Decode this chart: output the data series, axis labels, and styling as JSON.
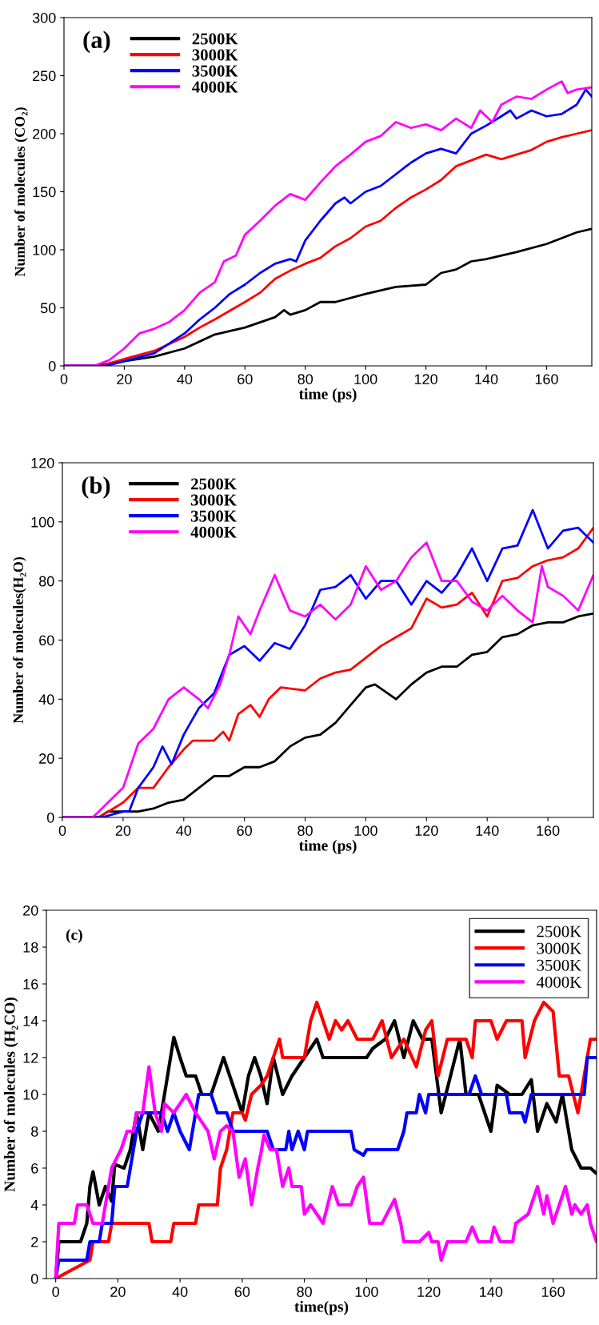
{
  "chart_data": [
    {
      "type": "line",
      "xlabel": "time (ps)",
      "ylabel": "Number of molecules (CO₂)",
      "annotations": [
        "(a)"
      ],
      "xlim": [
        0,
        175
      ],
      "xticks": [
        0,
        20,
        40,
        60,
        80,
        100,
        120,
        140,
        160
      ],
      "ylim": [
        0,
        300
      ],
      "yticks": [
        0,
        50,
        100,
        150,
        200,
        250,
        300
      ],
      "legend": "top left",
      "grid": false,
      "series": [
        {
          "name": "2500K",
          "color": "#000000",
          "x": [
            0,
            10,
            20,
            30,
            40,
            50,
            60,
            70,
            73,
            75,
            80,
            85,
            90,
            100,
            110,
            120,
            125,
            130,
            135,
            140,
            150,
            160,
            170,
            175
          ],
          "values": [
            0,
            0,
            4,
            8,
            15,
            27,
            33,
            42,
            48,
            44,
            48,
            55,
            55,
            62,
            68,
            70,
            80,
            83,
            90,
            92,
            98,
            105,
            115,
            118
          ]
        },
        {
          "name": "3000K",
          "color": "#ff0000",
          "x": [
            0,
            12,
            20,
            30,
            40,
            45,
            50,
            60,
            65,
            70,
            75,
            80,
            85,
            90,
            95,
            100,
            105,
            110,
            115,
            120,
            125,
            130,
            135,
            140,
            145,
            150,
            155,
            160,
            165,
            170,
            175
          ],
          "values": [
            0,
            0,
            6,
            13,
            25,
            33,
            40,
            55,
            63,
            75,
            82,
            88,
            93,
            103,
            110,
            120,
            125,
            136,
            145,
            152,
            160,
            172,
            177,
            182,
            178,
            182,
            186,
            193,
            197,
            200,
            203
          ]
        },
        {
          "name": "3500K",
          "color": "#0000ff",
          "x": [
            0,
            14,
            20,
            30,
            40,
            45,
            50,
            55,
            60,
            65,
            70,
            75,
            77,
            80,
            85,
            90,
            93,
            95,
            100,
            105,
            110,
            115,
            120,
            125,
            130,
            135,
            140,
            145,
            148,
            150,
            155,
            160,
            165,
            170,
            173,
            175
          ],
          "values": [
            0,
            0,
            4,
            11,
            28,
            40,
            50,
            62,
            70,
            80,
            88,
            92,
            90,
            108,
            125,
            140,
            145,
            140,
            150,
            155,
            165,
            175,
            183,
            187,
            183,
            200,
            207,
            215,
            220,
            213,
            220,
            215,
            217,
            225,
            238,
            232
          ]
        },
        {
          "name": "4000K",
          "color": "#ff00ff",
          "x": [
            0,
            10,
            15,
            20,
            25,
            30,
            35,
            40,
            45,
            50,
            53,
            57,
            60,
            65,
            70,
            75,
            80,
            85,
            90,
            95,
            100,
            105,
            110,
            115,
            120,
            125,
            130,
            135,
            138,
            142,
            145,
            150,
            155,
            160,
            165,
            167,
            170,
            175
          ],
          "values": [
            0,
            0,
            5,
            15,
            28,
            32,
            38,
            48,
            63,
            72,
            90,
            95,
            113,
            125,
            138,
            148,
            143,
            158,
            172,
            182,
            193,
            198,
            210,
            205,
            208,
            203,
            213,
            205,
            220,
            210,
            225,
            232,
            230,
            238,
            245,
            235,
            238,
            240
          ]
        }
      ]
    },
    {
      "type": "line",
      "xlabel": "time (ps)",
      "ylabel": "Number of molecules(H₂O)",
      "annotations": [
        "(b)"
      ],
      "xlim": [
        0,
        175
      ],
      "xticks": [
        0,
        20,
        40,
        60,
        80,
        100,
        120,
        140,
        160
      ],
      "ylim": [
        0,
        120
      ],
      "yticks": [
        0,
        20,
        40,
        60,
        80,
        100,
        120
      ],
      "legend": "top left",
      "grid": false,
      "series": [
        {
          "name": "2500K",
          "color": "#000000",
          "x": [
            0,
            12,
            15,
            25,
            30,
            35,
            40,
            45,
            50,
            55,
            60,
            65,
            70,
            75,
            80,
            85,
            90,
            95,
            100,
            103,
            110,
            115,
            120,
            125,
            130,
            135,
            140,
            145,
            150,
            155,
            160,
            165,
            170,
            175
          ],
          "values": [
            0,
            0,
            2,
            2,
            3,
            5,
            6,
            10,
            14,
            14,
            17,
            17,
            19,
            24,
            27,
            28,
            32,
            38,
            44,
            45,
            40,
            45,
            49,
            51,
            51,
            55,
            56,
            61,
            62,
            65,
            66,
            66,
            68,
            69
          ]
        },
        {
          "name": "3000K",
          "color": "#ff0000",
          "x": [
            0,
            12,
            20,
            25,
            30,
            35,
            40,
            43,
            50,
            53,
            55,
            58,
            62,
            65,
            68,
            72,
            80,
            85,
            90,
            95,
            100,
            105,
            110,
            115,
            120,
            125,
            130,
            135,
            140,
            145,
            150,
            155,
            160,
            165,
            170,
            175
          ],
          "values": [
            0,
            0,
            5,
            10,
            10,
            17,
            23,
            26,
            26,
            29,
            26,
            35,
            38,
            34,
            40,
            44,
            43,
            47,
            49,
            50,
            54,
            58,
            61,
            64,
            74,
            71,
            72,
            76,
            68,
            80,
            81,
            85,
            87,
            88,
            91,
            98
          ]
        },
        {
          "name": "3500K",
          "color": "#0000ff",
          "x": [
            0,
            13,
            20,
            22,
            25,
            30,
            33,
            36,
            40,
            45,
            50,
            55,
            60,
            65,
            70,
            75,
            80,
            85,
            90,
            95,
            100,
            105,
            110,
            115,
            120,
            125,
            130,
            135,
            140,
            145,
            150,
            155,
            160,
            165,
            170,
            175
          ],
          "values": [
            0,
            0,
            2,
            2,
            10,
            17,
            24,
            18,
            28,
            37,
            42,
            55,
            58,
            53,
            59,
            57,
            65,
            77,
            78,
            82,
            74,
            80,
            80,
            72,
            80,
            76,
            82,
            91,
            80,
            91,
            92,
            104,
            91,
            97,
            98,
            93
          ]
        },
        {
          "name": "4000K",
          "color": "#ff00ff",
          "x": [
            0,
            10,
            15,
            20,
            25,
            30,
            35,
            40,
            45,
            48,
            52,
            55,
            58,
            62,
            65,
            70,
            75,
            80,
            85,
            90,
            95,
            100,
            105,
            110,
            115,
            120,
            125,
            130,
            135,
            140,
            145,
            150,
            155,
            158,
            160,
            165,
            170,
            175
          ],
          "values": [
            0,
            0,
            5,
            10,
            25,
            30,
            40,
            44,
            40,
            37,
            45,
            55,
            68,
            62,
            70,
            82,
            70,
            68,
            72,
            67,
            72,
            85,
            77,
            80,
            88,
            93,
            80,
            80,
            73,
            70,
            75,
            70,
            66,
            85,
            78,
            75,
            70,
            82
          ]
        }
      ]
    },
    {
      "type": "line",
      "xlabel": "time(ps)",
      "ylabel": "Number of molecules (H₂CO)",
      "annotations": [
        "(c)"
      ],
      "xlim": [
        -3,
        174
      ],
      "xticks": [
        0,
        20,
        40,
        60,
        80,
        100,
        120,
        140,
        160
      ],
      "ylim": [
        0,
        20
      ],
      "yticks": [
        0,
        2,
        4,
        6,
        8,
        10,
        12,
        14,
        16,
        18,
        20
      ],
      "legend": "top right",
      "grid": false,
      "series": [
        {
          "name": "2500K",
          "color": "#000000",
          "x": [
            0,
            1,
            8,
            10,
            11,
            12,
            14,
            16,
            18,
            19,
            22,
            24,
            26,
            28,
            30,
            33,
            35,
            38,
            40,
            42,
            45,
            47,
            50,
            54,
            56,
            58,
            60,
            62,
            64,
            66,
            68,
            70,
            73,
            76,
            80,
            84,
            86,
            90,
            95,
            100,
            102,
            106,
            109,
            112,
            115,
            118,
            121,
            124,
            127,
            130,
            132,
            136,
            140,
            142,
            146,
            150,
            153,
            155,
            158,
            161,
            163,
            166,
            169,
            172,
            174
          ],
          "values": [
            0,
            2,
            2,
            3,
            5,
            5.8,
            4,
            5,
            4.2,
            6.2,
            6,
            7,
            9,
            7,
            9,
            8,
            10,
            13.1,
            12,
            11,
            11,
            10,
            10,
            12,
            11,
            10,
            9,
            11,
            12,
            11,
            9.5,
            12,
            10,
            11,
            12,
            13,
            12,
            12,
            12,
            12,
            12.5,
            13,
            14,
            12,
            14,
            13,
            13,
            9,
            11,
            13,
            10,
            10,
            8,
            10.5,
            10,
            10,
            10.8,
            8,
            9.5,
            8.5,
            10,
            7,
            6,
            6,
            5.7
          ]
        },
        {
          "name": "3000K",
          "color": "#ff0000",
          "x": [
            0,
            11,
            12,
            17,
            18,
            30,
            31,
            37,
            38,
            45,
            46,
            52,
            53,
            55,
            57,
            60,
            61,
            63,
            66,
            68,
            70,
            72,
            73,
            80,
            82,
            84,
            86,
            88,
            90,
            92,
            94,
            97,
            102,
            105,
            108,
            112,
            116,
            119,
            121,
            123,
            126,
            132,
            134,
            135,
            140,
            142,
            145,
            150,
            151,
            154,
            157,
            160,
            162,
            165,
            168,
            170,
            172,
            174
          ],
          "values": [
            0,
            1,
            2,
            2,
            3,
            3,
            2,
            2,
            3,
            3,
            4,
            4,
            6,
            7,
            9,
            9,
            8.6,
            10,
            10.5,
            11,
            12,
            13,
            12,
            12,
            14,
            15,
            14,
            13,
            14,
            13.5,
            14,
            13,
            13,
            14,
            12,
            13,
            11.5,
            13.5,
            14,
            11,
            13,
            13,
            12,
            14,
            14,
            13,
            14,
            14,
            12,
            14,
            15,
            14.5,
            11,
            11,
            9,
            11,
            13,
            13
          ]
        },
        {
          "name": "3500K",
          "color": "#0000ff",
          "x": [
            0,
            1,
            10,
            11,
            14,
            15,
            18,
            19,
            23,
            24,
            26,
            28,
            34,
            36,
            38,
            40,
            43,
            45,
            46,
            50,
            52,
            55,
            57,
            68,
            70,
            74,
            75,
            76,
            78,
            80,
            81,
            95,
            96,
            99,
            100,
            110,
            112,
            113,
            116,
            117,
            119,
            120,
            133,
            135,
            137,
            145,
            146,
            150,
            151,
            153,
            165,
            170,
            171,
            174
          ],
          "values": [
            0,
            1,
            1,
            2,
            2,
            3,
            3,
            5,
            5,
            6,
            8,
            9,
            9,
            8,
            9,
            8,
            7,
            9,
            10,
            10,
            9,
            9,
            8,
            8,
            7,
            7,
            8,
            7,
            8,
            7,
            8,
            8,
            7,
            6.7,
            7,
            7,
            8,
            9,
            9,
            10,
            9,
            10,
            10,
            11,
            10,
            10,
            9,
            9,
            8.5,
            10,
            10,
            10,
            12,
            12
          ]
        },
        {
          "name": "4000K",
          "color": "#ff00ff",
          "x": [
            0,
            1,
            6,
            7,
            10,
            12,
            15,
            18,
            21,
            23,
            25,
            26,
            28,
            30,
            32,
            34,
            35,
            38,
            42,
            45,
            49,
            51,
            53,
            55,
            57,
            59,
            61,
            63,
            65,
            66,
            67,
            69,
            71,
            73,
            75,
            76,
            79,
            80,
            82,
            84,
            86,
            89,
            91,
            95,
            97,
            99,
            101,
            105,
            109,
            111,
            112,
            117,
            120,
            121,
            123,
            124,
            126,
            132,
            134,
            136,
            140,
            141,
            143,
            147,
            148,
            152,
            155,
            157,
            158,
            160,
            163,
            164,
            166,
            167,
            169,
            171,
            172,
            174
          ],
          "values": [
            0,
            3,
            3,
            4,
            4,
            3,
            3,
            6,
            7,
            8,
            8,
            9,
            9,
            11.5,
            9,
            8,
            9.5,
            9,
            10,
            9,
            8,
            6.5,
            8,
            8.3,
            8,
            5.5,
            6.5,
            4,
            6,
            6.8,
            7.8,
            7,
            7,
            5,
            6,
            5,
            5,
            3.5,
            4,
            3.5,
            3,
            5,
            4,
            4,
            5,
            5.5,
            3,
            3,
            4.3,
            3,
            2,
            2,
            2.5,
            2,
            2,
            1,
            2,
            2,
            2.8,
            2,
            2,
            2.8,
            2,
            2,
            3,
            3.5,
            5,
            3.5,
            4.5,
            3,
            4.5,
            5,
            3.5,
            4,
            3.5,
            4,
            3,
            2
          ]
        }
      ]
    }
  ]
}
